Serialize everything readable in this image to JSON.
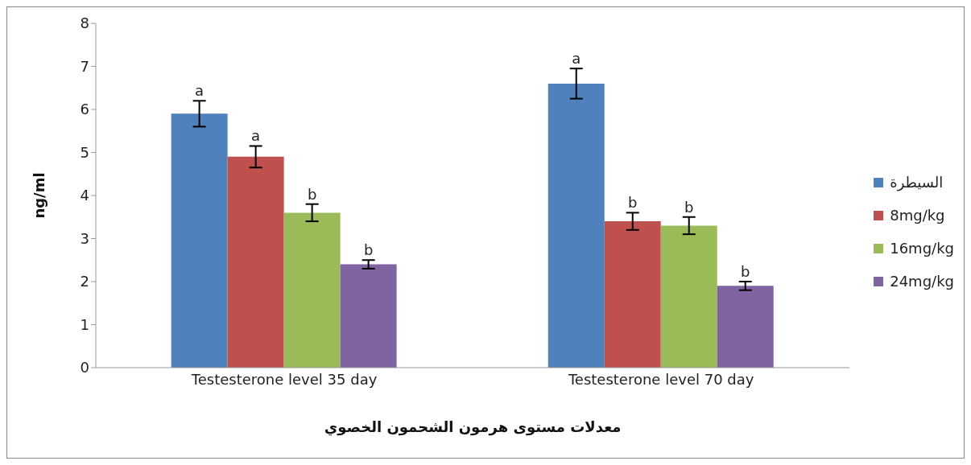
{
  "chart_data": {
    "type": "bar",
    "xlabel": "معدلات مستوى هرمون الشحمون الخصوي",
    "ylabel": "ng/ml",
    "categories": [
      "Testesterone level 35 day",
      "Testesterone level 70 day"
    ],
    "series": [
      {
        "name": "السيطرة",
        "color": "#4f81bd",
        "values": [
          5.9,
          6.6
        ],
        "errors": [
          0.3,
          0.35
        ],
        "value_labels": [
          "a",
          "a"
        ]
      },
      {
        "name": "8mg/kg",
        "color": "#c0504d",
        "values": [
          4.9,
          3.4
        ],
        "errors": [
          0.25,
          0.2
        ],
        "value_labels": [
          "a",
          "b"
        ]
      },
      {
        "name": "16mg/kg",
        "color": "#9bbb59",
        "values": [
          3.6,
          3.3
        ],
        "errors": [
          0.2,
          0.2
        ],
        "value_labels": [
          "b",
          "b"
        ]
      },
      {
        "name": "24mg/kg",
        "color": "#8064a2",
        "values": [
          2.4,
          1.9
        ],
        "errors": [
          0.1,
          0.1
        ],
        "value_labels": [
          "b",
          "b"
        ]
      }
    ],
    "ylim": [
      0,
      8
    ],
    "yticks": [
      0,
      1,
      2,
      3,
      4,
      5,
      6,
      7,
      8
    ],
    "grid": false,
    "legend": "right"
  }
}
